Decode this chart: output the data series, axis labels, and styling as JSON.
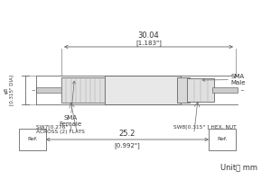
{
  "bg_color": "#ffffff",
  "line_color": "#666666",
  "text_color": "#333333",
  "dim_top_label": "30.04",
  "dim_top_sub": "[1.183\"]",
  "dim_bot_label": "25.2",
  "dim_bot_sub": "[0.992\"]",
  "dim_left_label": "φ8",
  "dim_left_sub": "[0.315\" DIA]",
  "label_sma_female": "SMA\nFemale",
  "label_sma_male": "SMA\nMale",
  "label_sw7": "SW7[0.276\" ]\nACROSS (2) FLATS",
  "label_sw8": "SW8[0.315\" ] HEX. NUT",
  "label_ref_left": "Ref.",
  "label_ref_right": "Ref.",
  "unit_text": "Unit： mm",
  "figw": 3.0,
  "figh": 2.0,
  "dpi": 100
}
